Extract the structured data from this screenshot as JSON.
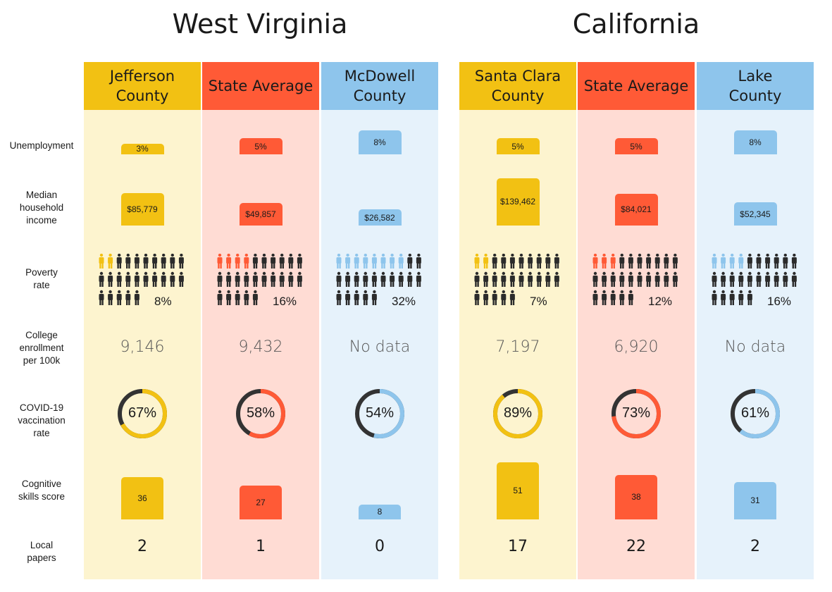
{
  "states": [
    "West Virginia",
    "California"
  ],
  "row_labels": [
    "Unemployment",
    "Median household income",
    "Poverty rate",
    "College enrollment per 100k",
    "COVID-19 vaccination rate",
    "Cognitive skills score",
    "Local papers"
  ],
  "colors": {
    "county_high": "#f2c113",
    "state_average": "#ff5a36",
    "county_low": "#8ec5ec",
    "bg_high": "#fdf4cf",
    "bg_state": "#ffdcd4",
    "bg_low": "#e6f2fb",
    "ring_dark": "#333333",
    "person_dark": "#2b2b2b"
  },
  "chart_data": {
    "type": "table",
    "columns": [
      {
        "state": "West Virginia",
        "name": "Jefferson County",
        "header_lines": [
          "Jefferson",
          "County"
        ],
        "role": "county_high",
        "unemployment": 3,
        "unemployment_label": "3%",
        "income": 85779,
        "income_label": "$85,779",
        "poverty": 8,
        "poverty_label": "8%",
        "poverty_icons_colored": 2,
        "college": "9,146",
        "vaccination": 67,
        "vaccination_label": "67%",
        "cognitive": 36,
        "cognitive_label": "36",
        "papers": "2"
      },
      {
        "state": "West Virginia",
        "name": "State Average",
        "header_lines": [
          "State Average"
        ],
        "role": "state_average",
        "unemployment": 5,
        "unemployment_label": "5%",
        "income": 49857,
        "income_label": "$49,857",
        "poverty": 16,
        "poverty_label": "16%",
        "poverty_icons_colored": 4,
        "college": "9,432",
        "vaccination": 58,
        "vaccination_label": "58%",
        "cognitive": 27,
        "cognitive_label": "27",
        "papers": "1"
      },
      {
        "state": "West Virginia",
        "name": "McDowell County",
        "header_lines": [
          "McDowell",
          "County"
        ],
        "role": "county_low",
        "unemployment": 8,
        "unemployment_label": "8%",
        "income": 26582,
        "income_label": "$26,582",
        "poverty": 32,
        "poverty_label": "32%",
        "poverty_icons_colored": 8,
        "college": "No data",
        "vaccination": 54,
        "vaccination_label": "54%",
        "cognitive": 8,
        "cognitive_label": "8",
        "papers": "0"
      },
      {
        "state": "California",
        "name": "Santa Clara County",
        "header_lines": [
          "Santa Clara",
          "County"
        ],
        "role": "county_high",
        "unemployment": 5,
        "unemployment_label": "5%",
        "income": 139462,
        "income_label": "$139,462",
        "poverty": 7,
        "poverty_label": "7%",
        "poverty_icons_colored": 2,
        "college": "7,197",
        "vaccination": 89,
        "vaccination_label": "89%",
        "cognitive": 51,
        "cognitive_label": "51",
        "papers": "17"
      },
      {
        "state": "California",
        "name": "State Average",
        "header_lines": [
          "State Average"
        ],
        "role": "state_average",
        "unemployment": 5,
        "unemployment_label": "5%",
        "income": 84021,
        "income_label": "$84,021",
        "poverty": 12,
        "poverty_label": "12%",
        "poverty_icons_colored": 3,
        "college": "6,920",
        "vaccination": 73,
        "vaccination_label": "73%",
        "cognitive": 38,
        "cognitive_label": "38",
        "papers": "22"
      },
      {
        "state": "California",
        "name": "Lake County",
        "header_lines": [
          "Lake",
          "County"
        ],
        "role": "county_low",
        "unemployment": 8,
        "unemployment_label": "8%",
        "income": 52345,
        "income_label": "$52,345",
        "poverty": 16,
        "poverty_label": "16%",
        "poverty_icons_colored": 4,
        "college": "No data",
        "vaccination": 61,
        "vaccination_label": "61%",
        "cognitive": 31,
        "cognitive_label": "31",
        "papers": "2"
      }
    ]
  }
}
